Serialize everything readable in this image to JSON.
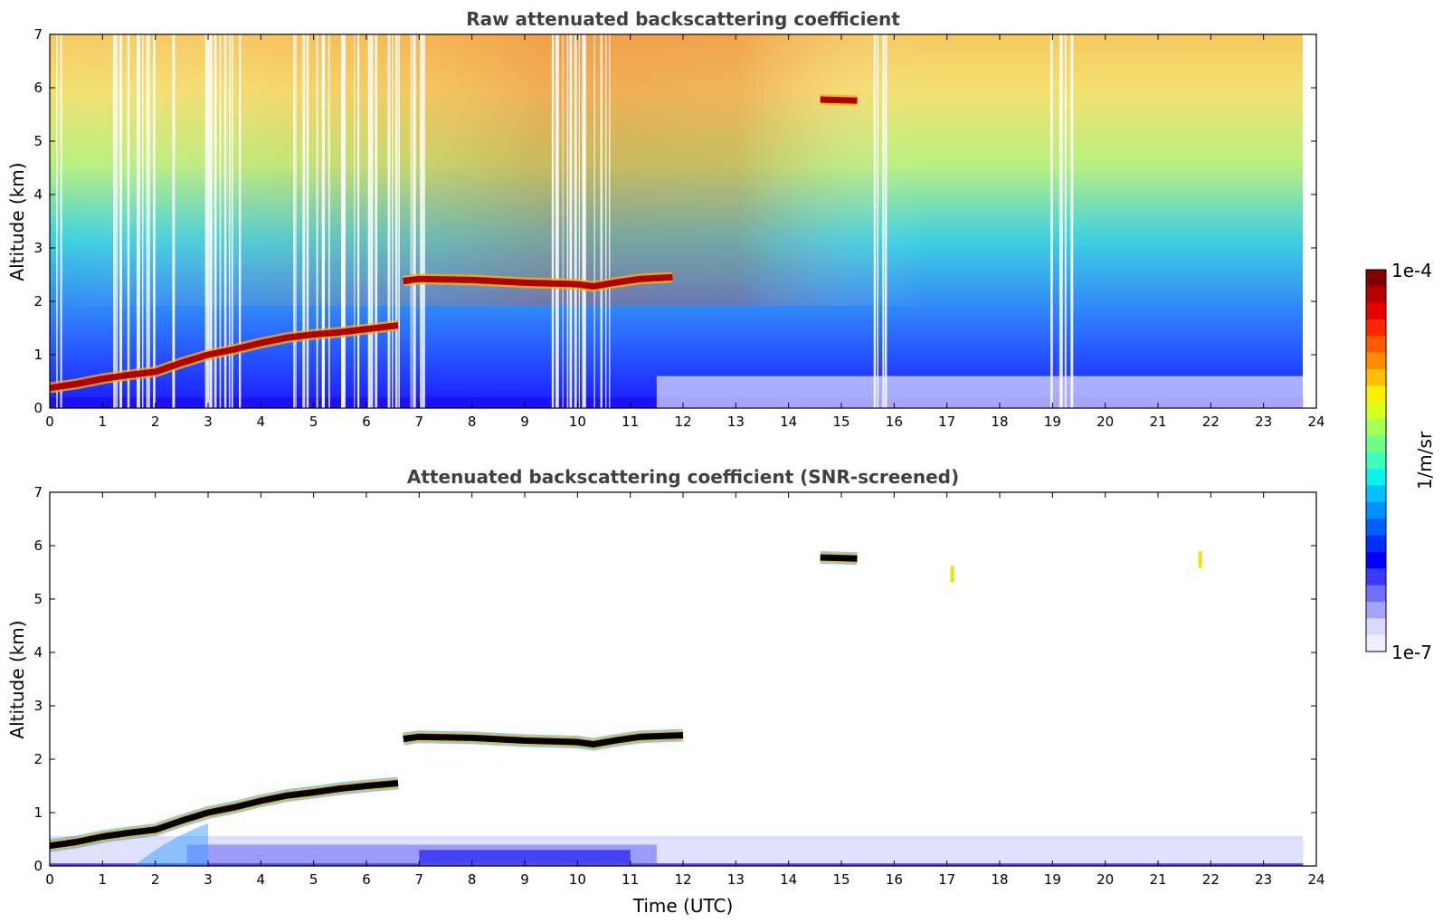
{
  "chart_data": [
    {
      "type": "heatmap",
      "title": "Raw attenuated backscattering coefficient",
      "xlabel": "",
      "ylabel": "Altitude (km)",
      "xlim": [
        0,
        24
      ],
      "ylim": [
        0,
        7
      ],
      "xticks": [
        0,
        1,
        2,
        3,
        4,
        5,
        6,
        7,
        8,
        9,
        10,
        11,
        12,
        13,
        14,
        15,
        16,
        17,
        18,
        19,
        20,
        21,
        22,
        23,
        24
      ],
      "yticks": [
        0,
        1,
        2,
        3,
        4,
        5,
        6,
        7
      ],
      "data_end_time": 23.75,
      "layers": [
        {
          "name": "boundary-layer-top",
          "points": [
            [
              0,
              0.38
            ],
            [
              0.5,
              0.45
            ],
            [
              1,
              0.55
            ],
            [
              1.5,
              0.62
            ],
            [
              2,
              0.68
            ],
            [
              2.5,
              0.85
            ],
            [
              3,
              1.0
            ],
            [
              3.5,
              1.1
            ],
            [
              4,
              1.22
            ],
            [
              4.5,
              1.32
            ],
            [
              5,
              1.38
            ],
            [
              5.5,
              1.42
            ],
            [
              6,
              1.48
            ],
            [
              6.6,
              1.55
            ]
          ]
        },
        {
          "name": "elevated-layer",
          "points": [
            [
              6.7,
              2.38
            ],
            [
              7,
              2.42
            ],
            [
              8,
              2.4
            ],
            [
              9,
              2.35
            ],
            [
              10,
              2.32
            ],
            [
              10.3,
              2.28
            ],
            [
              10.7,
              2.35
            ],
            [
              11.2,
              2.42
            ],
            [
              11.8,
              2.45
            ]
          ]
        },
        {
          "name": "cirrus-patch",
          "points": [
            [
              14.6,
              5.78
            ],
            [
              15.3,
              5.76
            ]
          ]
        }
      ]
    },
    {
      "type": "heatmap",
      "title": "Attenuated backscattering coefficient (SNR-screened)",
      "xlabel": "Time (UTC)",
      "ylabel": "Altitude (km)",
      "xlim": [
        0,
        24
      ],
      "ylim": [
        0,
        7
      ],
      "xticks": [
        0,
        1,
        2,
        3,
        4,
        5,
        6,
        7,
        8,
        9,
        10,
        11,
        12,
        13,
        14,
        15,
        16,
        17,
        18,
        19,
        20,
        21,
        22,
        23,
        24
      ],
      "yticks": [
        0,
        1,
        2,
        3,
        4,
        5,
        6,
        7
      ],
      "data_end_time": 23.75,
      "layers": [
        {
          "name": "boundary-layer-top",
          "points": [
            [
              0,
              0.38
            ],
            [
              0.5,
              0.45
            ],
            [
              1,
              0.55
            ],
            [
              1.5,
              0.62
            ],
            [
              2,
              0.68
            ],
            [
              2.5,
              0.85
            ],
            [
              3,
              1.0
            ],
            [
              3.5,
              1.1
            ],
            [
              4,
              1.22
            ],
            [
              4.5,
              1.32
            ],
            [
              5,
              1.38
            ],
            [
              5.5,
              1.45
            ],
            [
              6,
              1.5
            ],
            [
              6.6,
              1.55
            ]
          ]
        },
        {
          "name": "elevated-layer",
          "points": [
            [
              6.7,
              2.38
            ],
            [
              7,
              2.42
            ],
            [
              8,
              2.4
            ],
            [
              9,
              2.35
            ],
            [
              10,
              2.32
            ],
            [
              10.3,
              2.28
            ],
            [
              10.7,
              2.35
            ],
            [
              11.2,
              2.42
            ],
            [
              12,
              2.45
            ]
          ]
        },
        {
          "name": "cirrus-patch",
          "points": [
            [
              14.6,
              5.78
            ],
            [
              15.3,
              5.76
            ]
          ]
        },
        {
          "name": "small-patch",
          "points": [
            [
              17.1,
              5.45
            ]
          ]
        },
        {
          "name": "small-patch-2",
          "points": [
            [
              21.8,
              5.72
            ]
          ]
        }
      ]
    }
  ],
  "colorbar": {
    "label": "1/m/sr",
    "max_label": "1e-4",
    "min_label": "1e-7",
    "colors": [
      "#7f0000",
      "#b30000",
      "#e60000",
      "#ff2600",
      "#ff5a00",
      "#ff8c00",
      "#ffbf00",
      "#fff000",
      "#d8ff1f",
      "#a4ff52",
      "#70ff86",
      "#3dffba",
      "#09f0ee",
      "#00c0ff",
      "#0090ff",
      "#0060ff",
      "#0030ff",
      "#0000ff",
      "#3a3aff",
      "#7070ff",
      "#a4a4ff",
      "#d8d8ff",
      "#eeeeff"
    ]
  }
}
